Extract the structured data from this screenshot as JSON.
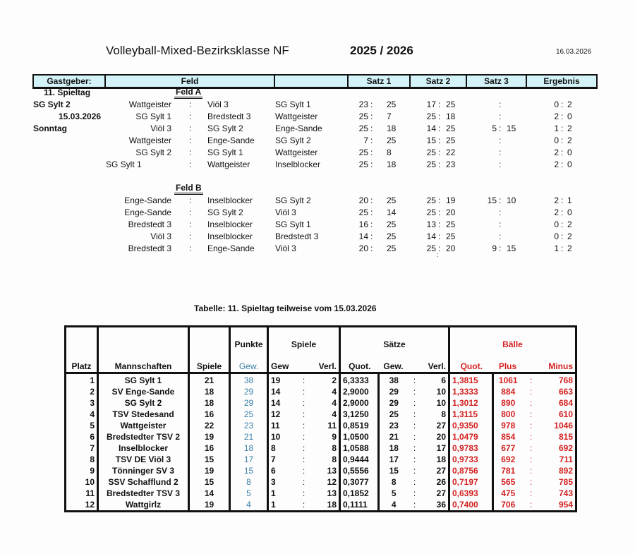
{
  "header": {
    "title": "Volleyball-Mixed-Bezirksklasse NF",
    "season": "2025 / 2026",
    "date": "16.03.2026"
  },
  "schedule_header": [
    "Gastgeber:",
    "Feld",
    "",
    "Satz 1",
    "Satz 2",
    "Satz 3",
    "Ergebnis"
  ],
  "info": {
    "matchday": "11. Spieltag",
    "host": "SG Sylt 2",
    "date": "15.03.2026",
    "weekday": "Sonntag"
  },
  "feld_a": {
    "label": "Feld A",
    "games": [
      {
        "home": "Wattgeister",
        "away": "Viöl 3",
        "ref": "SG Sylt 1",
        "s1": [
          "23",
          "25"
        ],
        "s2": [
          "17",
          "25"
        ],
        "s3": [
          "",
          ""
        ],
        "res": [
          "0",
          "2"
        ]
      },
      {
        "home": "SG Sylt 1",
        "away": "Bredstedt 3",
        "ref": "Wattgeister",
        "s1": [
          "25",
          "7"
        ],
        "s2": [
          "25",
          "18"
        ],
        "s3": [
          "",
          ""
        ],
        "res": [
          "2",
          "0"
        ]
      },
      {
        "home": "Viöl 3",
        "away": "SG Sylt 2",
        "ref": "Enge-Sande",
        "s1": [
          "25",
          "18"
        ],
        "s2": [
          "14",
          "25"
        ],
        "s3": [
          "5",
          "15"
        ],
        "res": [
          "1",
          "2"
        ]
      },
      {
        "home": "Wattgeister",
        "away": "Enge-Sande",
        "ref": "SG Sylt 2",
        "s1": [
          "7",
          "25"
        ],
        "s2": [
          "15",
          "25"
        ],
        "s3": [
          "",
          ""
        ],
        "res": [
          "0",
          "2"
        ]
      },
      {
        "home": "SG Sylt 2",
        "away": "SG Sylt 1",
        "ref": "Wattgeister",
        "s1": [
          "25",
          "8"
        ],
        "s2": [
          "25",
          "22"
        ],
        "s3": [
          "",
          ""
        ],
        "res": [
          "2",
          "0"
        ]
      },
      {
        "home": "SG Sylt 1",
        "away": "Wattgeister",
        "ref": "Inselblocker",
        "s1": [
          "25",
          "18"
        ],
        "s2": [
          "25",
          "23"
        ],
        "s3": [
          "",
          ""
        ],
        "res": [
          "2",
          "0"
        ]
      }
    ]
  },
  "feld_b": {
    "label": "Feld B",
    "games": [
      {
        "home": "Enge-Sande",
        "away": "Inselblocker",
        "ref": "SG Sylt 2",
        "s1": [
          "20",
          "25"
        ],
        "s2": [
          "25",
          "19"
        ],
        "s3": [
          "15",
          "10"
        ],
        "res": [
          "2",
          "1"
        ]
      },
      {
        "home": "Enge-Sande",
        "away": "SG Sylt 2",
        "ref": "Viöl 3",
        "s1": [
          "25",
          "14"
        ],
        "s2": [
          "25",
          "20"
        ],
        "s3": [
          "",
          ""
        ],
        "res": [
          "2",
          "0"
        ]
      },
      {
        "home": "Bredstedt 3",
        "away": "Inselblocker",
        "ref": "SG Sylt 1",
        "s1": [
          "16",
          "25"
        ],
        "s2": [
          "13",
          "25"
        ],
        "s3": [
          "",
          ""
        ],
        "res": [
          "0",
          "2"
        ]
      },
      {
        "home": "Viöl 3",
        "away": "Inselblocker",
        "ref": "Bredstedt 3",
        "s1": [
          "14",
          "25"
        ],
        "s2": [
          "14",
          "25"
        ],
        "s3": [
          "",
          ""
        ],
        "res": [
          "0",
          "2"
        ]
      },
      {
        "home": "Bredstedt 3",
        "away": "Enge-Sande",
        "ref": "Viöl 3",
        "s1": [
          "20",
          "25"
        ],
        "s2": [
          "25",
          "20"
        ],
        "s3": [
          "9",
          "15"
        ],
        "res": [
          "1",
          "2"
        ]
      }
    ]
  },
  "table_title": "Tabelle:  11. Spieltag teilweise vom 15.03.2026",
  "standings": {
    "group_headers": {
      "punkte": "Punkte",
      "spiele": "Spiele",
      "saetze": "Sätze",
      "baelle": "Bälle"
    },
    "columns": {
      "platz": "Platz",
      "team": "Mannschaften",
      "spiele": "Spiele",
      "gew": "Gew.",
      "sp_gew": "Gew",
      "sp_verl": "Verl.",
      "s_quot": "Quot.",
      "s_gew": "Gew.",
      "s_verl": "Verl.",
      "b_quot": "Quot.",
      "b_plus": "Plus",
      "b_minus": "Minus"
    },
    "rows": [
      [
        "1",
        "SG Sylt 1",
        "21",
        "38",
        "19",
        "2",
        "6,3333",
        "38",
        "6",
        "1,3815",
        "1061",
        "768"
      ],
      [
        "2",
        "SV Enge-Sande",
        "18",
        "29",
        "14",
        "4",
        "2,9000",
        "29",
        "10",
        "1,3333",
        "884",
        "663"
      ],
      [
        "3",
        "SG Sylt 2",
        "18",
        "29",
        "14",
        "4",
        "2,9000",
        "29",
        "10",
        "1,3012",
        "890",
        "684"
      ],
      [
        "4",
        "TSV Stedesand",
        "16",
        "25",
        "12",
        "4",
        "3,1250",
        "25",
        "8",
        "1,3115",
        "800",
        "610"
      ],
      [
        "5",
        "Wattgeister",
        "22",
        "23",
        "11",
        "11",
        "0,8519",
        "23",
        "27",
        "0,9350",
        "978",
        "1046"
      ],
      [
        "6",
        "Bredstedter TSV 2",
        "19",
        "21",
        "10",
        "9",
        "1,0500",
        "21",
        "20",
        "1,0479",
        "854",
        "815"
      ],
      [
        "7",
        "Inselblocker",
        "16",
        "18",
        "8",
        "8",
        "1,0588",
        "18",
        "17",
        "0,9783",
        "677",
        "692"
      ],
      [
        "8",
        "TSV DE Viöl 3",
        "15",
        "17",
        "7",
        "8",
        "0,9444",
        "17",
        "18",
        "0,9733",
        "692",
        "711"
      ],
      [
        "9",
        "Tönninger SV 3",
        "19",
        "15",
        "6",
        "13",
        "0,5556",
        "15",
        "27",
        "0,8756",
        "781",
        "892"
      ],
      [
        "10",
        "SSV Schafflund 2",
        "15",
        "8",
        "3",
        "12",
        "0,3077",
        "8",
        "26",
        "0,7197",
        "565",
        "785"
      ],
      [
        "11",
        "Bredstedter TSV 3",
        "14",
        "5",
        "1",
        "13",
        "0,1852",
        "5",
        "27",
        "0,6393",
        "475",
        "743"
      ],
      [
        "12",
        "Wattgirlz",
        "19",
        "4",
        "1",
        "18",
        "0,1111",
        "4",
        "36",
        "0,7400",
        "706",
        "954"
      ]
    ]
  },
  "colors": {
    "header_bg": "#d3f3f9",
    "points": "#3a7fa8",
    "balls": "#d42020"
  }
}
